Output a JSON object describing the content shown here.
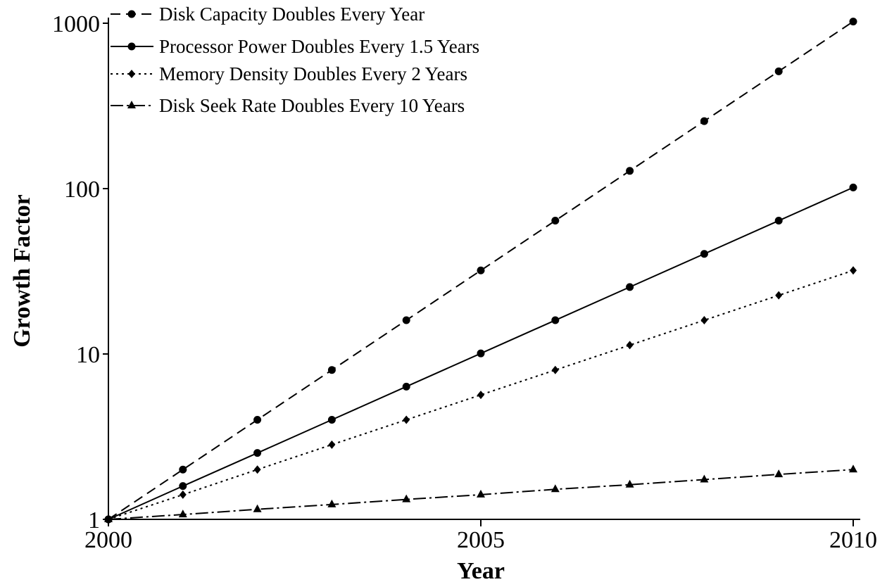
{
  "chart_data": {
    "type": "line",
    "title": "",
    "xlabel": "Year",
    "ylabel": "Growth Factor",
    "xlim": [
      2000,
      2010
    ],
    "ylim": [
      1,
      1000
    ],
    "yscale": "log",
    "x_ticks": [
      2000,
      2005,
      2010
    ],
    "x_tick_labels": [
      "2000",
      "2005",
      "2010"
    ],
    "y_ticks": [
      1,
      10,
      100,
      1000
    ],
    "y_tick_labels": [
      "1",
      "10",
      "100",
      "1000"
    ],
    "grid": false,
    "legend_position": "top-left",
    "x": [
      2000,
      2001,
      2002,
      2003,
      2004,
      2005,
      2006,
      2007,
      2008,
      2009,
      2010
    ],
    "series": [
      {
        "name": "Disk Capacity Doubles Every Year",
        "line_style": "dashed",
        "marker": "circle",
        "values": [
          1,
          2,
          4,
          8,
          16,
          32,
          64,
          128,
          256,
          512,
          1024
        ]
      },
      {
        "name": "Processor Power Doubles Every 1.5 Years",
        "line_style": "solid",
        "marker": "circle",
        "values": [
          1,
          1.59,
          2.52,
          4,
          6.35,
          10.08,
          16,
          25.4,
          40.3,
          64,
          101.6
        ]
      },
      {
        "name": "Memory Density Doubles Every 2 Years",
        "line_style": "dotted",
        "marker": "diamond",
        "values": [
          1,
          1.41,
          2,
          2.83,
          4,
          5.66,
          8,
          11.31,
          16,
          22.63,
          32
        ]
      },
      {
        "name": "Disk Seek Rate Doubles Every 10 Years",
        "line_style": "dashdot",
        "marker": "triangle",
        "values": [
          1,
          1.07,
          1.15,
          1.23,
          1.32,
          1.41,
          1.52,
          1.62,
          1.74,
          1.87,
          2
        ]
      }
    ]
  }
}
